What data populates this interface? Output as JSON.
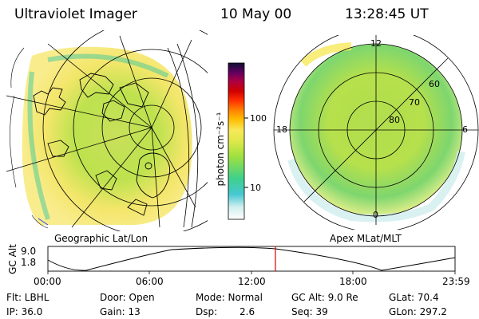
{
  "header": {
    "instrument": "Ultraviolet Imager",
    "date": "10 May 00",
    "time": "13:28:45 UT"
  },
  "left_panel": {
    "caption": "Geographic Lat/Lon"
  },
  "right_panel": {
    "caption": "Apex MLat/MLT",
    "mlt_labels": {
      "top": "12",
      "left": "18",
      "right": "6",
      "bottom": "0"
    },
    "lat_labels": [
      "60",
      "70",
      "80"
    ]
  },
  "colorbar": {
    "unit_label": "photon cm⁻²s⁻¹",
    "ticks": [
      "100",
      "10"
    ]
  },
  "altitude_plot": {
    "ylabel": "GC Alt",
    "yticks": [
      "9.0",
      "1.8"
    ],
    "xticks": [
      "00:00",
      "06:00",
      "12:00",
      "18:00",
      "23:59"
    ],
    "marker_time": "13:28:45"
  },
  "info": {
    "flt": "Flt: LBHL",
    "ip": "IP: 36.0",
    "door": "Door: Open",
    "gain": "Gain: 13",
    "mode": "Mode: Normal",
    "dsp_label": "Dsp:",
    "dsp_value": "2.6",
    "gc_alt": "GC Alt: 9.0 Re",
    "seq": "Seq: 39",
    "glat": "GLat: 70.4",
    "glon": "GLon: 297.2"
  },
  "colors": {
    "colorbar_stops": [
      "#ffffff",
      "#cfeeee",
      "#46c8d2",
      "#3fd08c",
      "#9ee040",
      "#dfe84a",
      "#f8e85a",
      "#ffbc00",
      "#ff8000",
      "#ff3000",
      "#d00000",
      "#b00040",
      "#600060",
      "#101030"
    ],
    "grid": "#000000",
    "marker": "#dd0000"
  }
}
